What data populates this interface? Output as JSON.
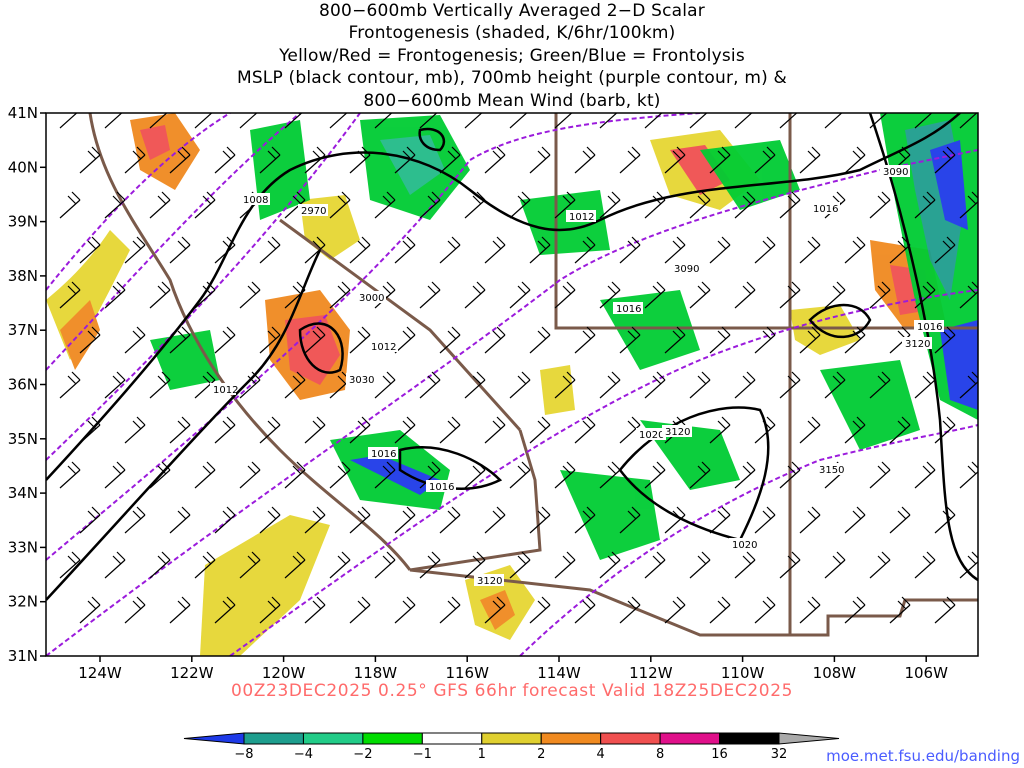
{
  "title_lines": [
    "800−600mb Vertically Averaged 2−D Scalar",
    "Frontogenesis (shaded, K/6hr/100km)",
    "Yellow/Red = Frontogenesis;  Green/Blue = Frontolysis",
    "MSLP (black contour, mb), 700mb height (purple contour, m) &",
    "800−600mb Mean Wind (barb, kt)"
  ],
  "map": {
    "lat_labels": [
      "41N",
      "40N",
      "39N",
      "38N",
      "37N",
      "36N",
      "35N",
      "34N",
      "33N",
      "32N",
      "31N"
    ],
    "lon_labels": [
      "124W",
      "122W",
      "120W",
      "118W",
      "116W",
      "114W",
      "112W",
      "110W",
      "108W",
      "106W"
    ],
    "contour_labels": {
      "mslp": [
        "1008",
        "1012",
        "1012",
        "1012",
        "1016",
        "1016",
        "1016",
        "1016",
        "1016",
        "1020",
        "1020"
      ],
      "height": [
        "2970",
        "3000",
        "3030",
        "3090",
        "3090",
        "3120",
        "3120",
        "3120",
        "3150"
      ]
    },
    "colors": {
      "mslp": "#000000",
      "height": "#9b1bdc",
      "borders": "#7a5a4a",
      "frontolysis_strong": "#2233cc",
      "frontolysis": "#00cc33",
      "frontogenesis": "#e6d633",
      "frontogenesis_strong": "#ee3322"
    }
  },
  "footer": "00Z23DEC2025 0.25° GFS 66hr forecast Valid 18Z25DEC2025",
  "colorbar": {
    "tick_labels": [
      "−8",
      "−4",
      "−2",
      "−1",
      "1",
      "2",
      "4",
      "8",
      "16",
      "32"
    ],
    "colors": [
      "#1e3ae8",
      "#1e9e8e",
      "#22cc88",
      "#00dd00",
      "#ffffff",
      "#e0d030",
      "#f08a20",
      "#f05050",
      "#e0108a",
      "#000000",
      "#aaaaaa"
    ]
  },
  "credit": "moe.met.fsu.edu/banding"
}
